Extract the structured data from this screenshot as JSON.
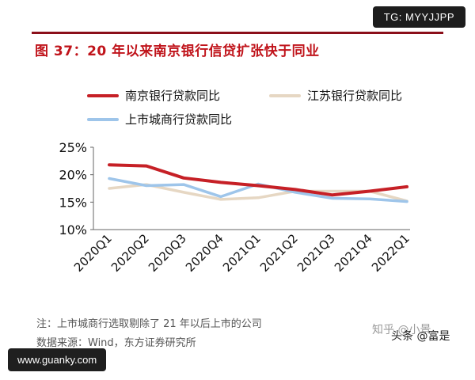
{
  "badges": {
    "top_right": "TG: MYYJJPP",
    "bottom_left": "www.guanky.com"
  },
  "figure": {
    "title": "图 37：20 年以来南京银行信贷扩张快于同业",
    "note": "注：上市城商行选取剔除了 21 年以后上市的公司",
    "source": "数据来源：Wind，东方证券研究所",
    "watermark": "知乎 @小景",
    "watermark2": "头条 @富是"
  },
  "chart_data": {
    "type": "line",
    "title": "",
    "xlabel": "",
    "ylabel": "",
    "categories": [
      "2020Q1",
      "2020Q2",
      "2020Q3",
      "2020Q4",
      "2021Q1",
      "2021Q2",
      "2021Q3",
      "2021Q4",
      "2022Q1"
    ],
    "yticks": [
      "25%",
      "20%",
      "15%",
      "10%"
    ],
    "ylim": [
      10,
      25
    ],
    "grid": false,
    "legend_position": "top",
    "series": [
      {
        "name": "南京银行贷款同比",
        "color": "#c62026",
        "values": [
          21.8,
          21.6,
          19.4,
          18.6,
          18.0,
          17.3,
          16.3,
          17.0,
          17.8
        ]
      },
      {
        "name": "江苏银行贷款同比",
        "color": "#e6d7c3",
        "values": [
          17.5,
          18.2,
          16.8,
          15.5,
          15.8,
          17.0,
          17.0,
          17.0,
          15.2
        ]
      },
      {
        "name": "上市城商行贷款同比",
        "color": "#9ec5ea",
        "values": [
          19.3,
          18.0,
          18.2,
          16.0,
          18.3,
          16.8,
          15.7,
          15.6,
          15.1
        ]
      }
    ]
  }
}
